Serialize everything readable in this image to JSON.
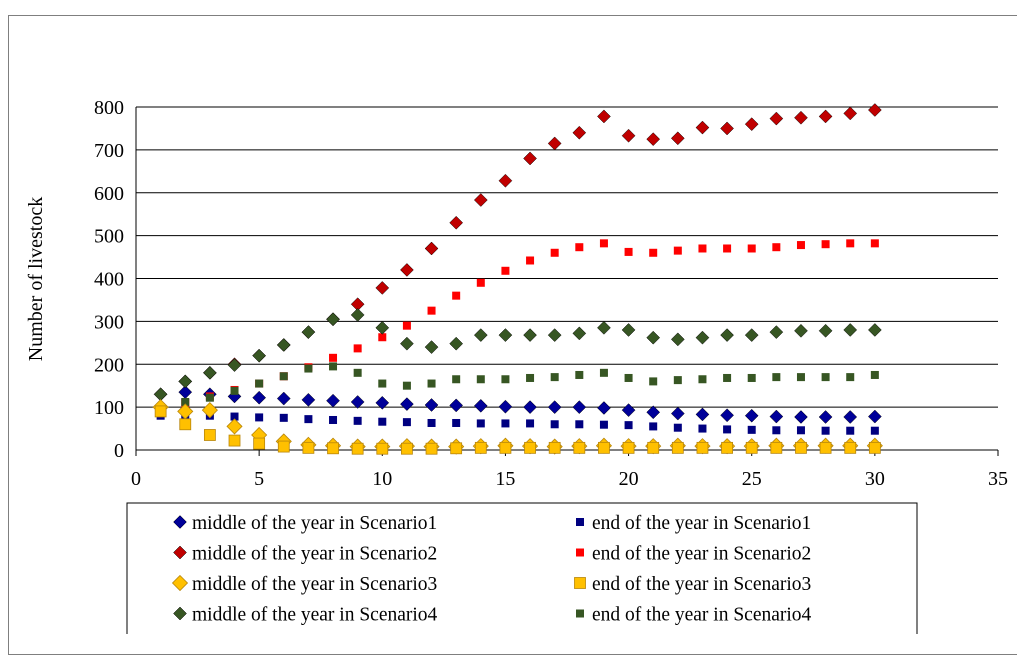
{
  "chart_data": {
    "type": "scatter",
    "title": "",
    "xlabel": "",
    "ylabel": "Number of livestock",
    "xlim": [
      0,
      35
    ],
    "ylim": [
      0,
      800
    ],
    "xticks": [
      "0",
      "5",
      "10",
      "15",
      "20",
      "25",
      "30",
      "35"
    ],
    "yticks": [
      "0",
      "100",
      "200",
      "300",
      "400",
      "500",
      "600",
      "700",
      "800"
    ],
    "grid": "horizontal",
    "legend_position": "bottom",
    "series": [
      {
        "name": "middle of the year in Scenario1",
        "marker": "diamond",
        "color": "#000099",
        "size": "small",
        "x": [
          1,
          2,
          3,
          4,
          5,
          6,
          7,
          8,
          9,
          10,
          11,
          12,
          13,
          14,
          15,
          16,
          17,
          18,
          19,
          20,
          21,
          22,
          23,
          24,
          25,
          26,
          27,
          28,
          29,
          30
        ],
        "y": [
          100,
          135,
          130,
          125,
          122,
          120,
          117,
          115,
          112,
          110,
          107,
          105,
          104,
          103,
          101,
          100,
          100,
          100,
          98,
          93,
          88,
          85,
          83,
          81,
          80,
          78,
          77,
          77,
          77,
          78
        ]
      },
      {
        "name": "end of the year in Scenario1",
        "marker": "square",
        "color": "#000080",
        "size": "small",
        "x": [
          1,
          2,
          3,
          4,
          5,
          6,
          7,
          8,
          9,
          10,
          11,
          12,
          13,
          14,
          15,
          16,
          17,
          18,
          19,
          20,
          21,
          22,
          23,
          24,
          25,
          26,
          27,
          28,
          29,
          30
        ],
        "y": [
          80,
          82,
          80,
          78,
          76,
          75,
          72,
          70,
          68,
          66,
          65,
          63,
          63,
          62,
          62,
          62,
          60,
          60,
          59,
          58,
          55,
          52,
          50,
          48,
          47,
          46,
          46,
          45,
          45,
          45
        ]
      },
      {
        "name": "middle of the year in Scenario2",
        "marker": "diamond",
        "color": "#c00000",
        "size": "small",
        "x": [
          1,
          2,
          3,
          4,
          5,
          6,
          7,
          8,
          9,
          10,
          11,
          12,
          13,
          14,
          15,
          16,
          17,
          18,
          19,
          20,
          21,
          22,
          23,
          24,
          25,
          26,
          27,
          28,
          29,
          30
        ],
        "y": [
          130,
          160,
          180,
          200,
          220,
          245,
          275,
          305,
          340,
          378,
          420,
          470,
          530,
          583,
          628,
          680,
          715,
          740,
          778,
          733,
          725,
          727,
          752,
          750,
          760,
          773,
          775,
          778,
          785,
          793
        ]
      },
      {
        "name": "end of the year in Scenario2",
        "marker": "square",
        "color": "#ff0000",
        "size": "small",
        "x": [
          1,
          2,
          3,
          4,
          5,
          6,
          7,
          8,
          9,
          10,
          11,
          12,
          13,
          14,
          15,
          16,
          17,
          18,
          19,
          20,
          21,
          22,
          23,
          24,
          25,
          26,
          27,
          28,
          29,
          30
        ],
        "y": [
          100,
          110,
          125,
          140,
          155,
          172,
          193,
          215,
          237,
          263,
          290,
          325,
          360,
          390,
          418,
          442,
          460,
          473,
          482,
          462,
          460,
          465,
          470,
          470,
          470,
          473,
          478,
          480,
          482,
          482
        ]
      },
      {
        "name": "middle of the year in Scenario3",
        "marker": "diamond",
        "color": "#ffc000",
        "size": "large",
        "x": [
          1,
          2,
          3,
          4,
          5,
          6,
          7,
          8,
          9,
          10,
          11,
          12,
          13,
          14,
          15,
          16,
          17,
          18,
          19,
          20,
          21,
          22,
          23,
          24,
          25,
          26,
          27,
          28,
          29,
          30
        ],
        "y": [
          100,
          90,
          93,
          55,
          35,
          20,
          12,
          10,
          8,
          8,
          9,
          8,
          8,
          9,
          10,
          9,
          8,
          9,
          10,
          9,
          9,
          10,
          9,
          9,
          9,
          10,
          10,
          10,
          10,
          10
        ]
      },
      {
        "name": "end of the year in Scenario3",
        "marker": "square",
        "color": "#ffc000",
        "size": "large",
        "x": [
          1,
          2,
          3,
          4,
          5,
          6,
          7,
          8,
          9,
          10,
          11,
          12,
          13,
          14,
          15,
          16,
          17,
          18,
          19,
          20,
          21,
          22,
          23,
          24,
          25,
          26,
          27,
          28,
          29,
          30
        ],
        "y": [
          90,
          60,
          35,
          22,
          15,
          8,
          5,
          4,
          3,
          3,
          3,
          3,
          4,
          5,
          5,
          5,
          5,
          5,
          5,
          5,
          5,
          5,
          5,
          5,
          5,
          5,
          5,
          5,
          5,
          5
        ]
      },
      {
        "name": "middle of the year in Scenario4",
        "marker": "diamond",
        "color": "#375623",
        "size": "small",
        "x": [
          1,
          2,
          3,
          4,
          5,
          6,
          7,
          8,
          9,
          10,
          11,
          12,
          13,
          14,
          15,
          16,
          17,
          18,
          19,
          20,
          21,
          22,
          23,
          24,
          25,
          26,
          27,
          28,
          29,
          30
        ],
        "y": [
          130,
          160,
          180,
          198,
          220,
          245,
          275,
          305,
          315,
          285,
          248,
          240,
          248,
          268,
          268,
          268,
          268,
          272,
          285,
          280,
          262,
          258,
          262,
          268,
          268,
          275,
          278,
          278,
          280,
          280
        ]
      },
      {
        "name": "end of the year in Scenario4",
        "marker": "square",
        "color": "#375623",
        "size": "small",
        "x": [
          1,
          2,
          3,
          4,
          5,
          6,
          7,
          8,
          9,
          10,
          11,
          12,
          13,
          14,
          15,
          16,
          17,
          18,
          19,
          20,
          21,
          22,
          23,
          24,
          25,
          26,
          27,
          28,
          29,
          30
        ],
        "y": [
          95,
          112,
          122,
          138,
          155,
          172,
          190,
          195,
          180,
          155,
          150,
          155,
          165,
          165,
          165,
          168,
          170,
          175,
          180,
          168,
          160,
          163,
          165,
          168,
          168,
          170,
          170,
          170,
          170,
          175
        ]
      }
    ]
  }
}
